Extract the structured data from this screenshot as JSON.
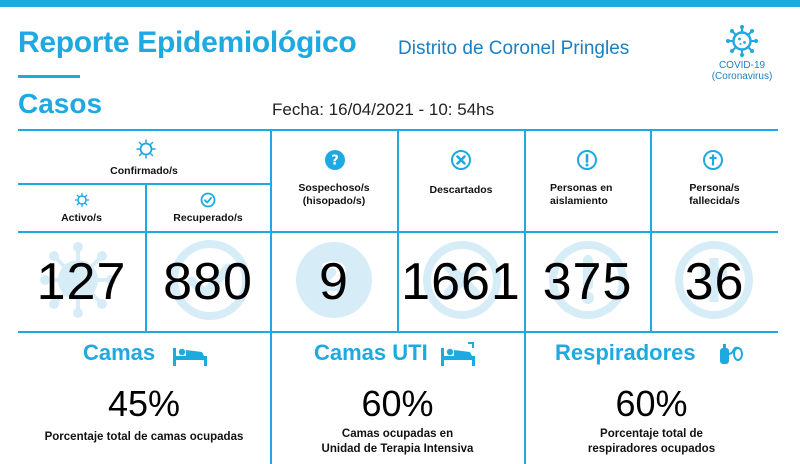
{
  "header": {
    "title": "Reporte Epidemiológico",
    "subtitle": "Distrito de Coronel Pringles",
    "badge_line1": "COVID-19",
    "badge_line2": "(Coronavirus)",
    "badge_icon": "virus-icon"
  },
  "section": {
    "title": "Casos",
    "date": "Fecha: 16/04/2021 - 10: 54hs"
  },
  "stats": {
    "confirmados_label": "Confirmado/s",
    "activos_label": "Activo/s",
    "activos_value": "127",
    "recuperados_label": "Recuperado/s",
    "recuperados_value": "880",
    "sospechosos_label_1": "Sospechoso/s",
    "sospechosos_label_2": "(hisopado/s)",
    "sospechosos_value": "9",
    "descartados_label": "Descartados",
    "descartados_value": "1661",
    "aislamiento_label_1": "Personas en",
    "aislamiento_label_2": "aislamiento",
    "aislamiento_value": "375",
    "fallecidos_label_1": "Persona/s",
    "fallecidos_label_2": "fallecida/s",
    "fallecidos_value": "36"
  },
  "resources": {
    "camas_title": "Camas",
    "camas_pct": "45%",
    "camas_desc": "Porcentaje total de camas ocupadas",
    "uti_title": "Camas UTI",
    "uti_pct": "60%",
    "uti_desc_1": "Camas ocupadas en",
    "uti_desc_2": "Unidad de Terapia Intensiva",
    "resp_title": "Respiradores",
    "resp_pct": "60%",
    "resp_desc_1": "Porcentaje total de",
    "resp_desc_2": "respiradores ocupados"
  },
  "colors": {
    "accent": "#1fa9e1",
    "accent_dark": "#1a7fc3",
    "ghost": "#d6edf8"
  }
}
